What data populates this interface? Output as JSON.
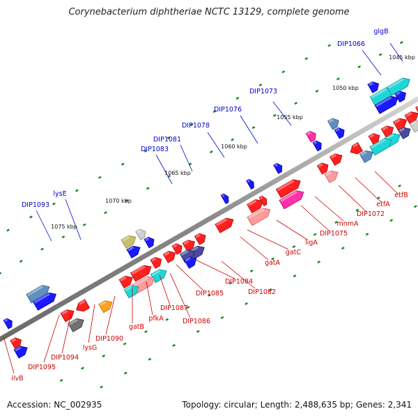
{
  "title": "Corynebacterium diphtheriae NCTC 13129, complete genome",
  "footer": {
    "accession": "Accession: NC_002935",
    "summary": "Topology: circular; Length: 2,488,635 bp; Genes: 2,341"
  },
  "colors": {
    "backbone": "#8c8c8c",
    "tick": "#1a8a1a",
    "upper_label": "#0000cc",
    "lower_label": "#cc0000"
  },
  "scale_labels": [
    "1045 kbp",
    "1050 kbp",
    "1055 kbp",
    "1060 kbp",
    "1065 kbp",
    "1070 kbp",
    "1075 kbp"
  ],
  "upper_genes": [
    "glgB",
    "DIP1066",
    "DIP1073",
    "DIP1076",
    "DIP1078",
    "DIP1081",
    "DIP1083",
    "lysE",
    "DIP1093"
  ],
  "lower_genes": [
    "etfB",
    "etfA",
    "DIP1072",
    "mnmA",
    "DIP1075",
    "ligA",
    "gatC",
    "gatA",
    "DIP1082",
    "DIP1084",
    "DIP1085",
    "DIP1086",
    "DIP1087",
    "pfkA",
    "gatB",
    "DIP1090",
    "lysG",
    "DIP1094",
    "DIP1095",
    "ilvB"
  ],
  "feature_colors": [
    "red",
    "blue",
    "cyan",
    "pink",
    "light-red",
    "steel-blue",
    "navy",
    "gray",
    "olive",
    "orange",
    "magenta",
    "dark-gray"
  ]
}
